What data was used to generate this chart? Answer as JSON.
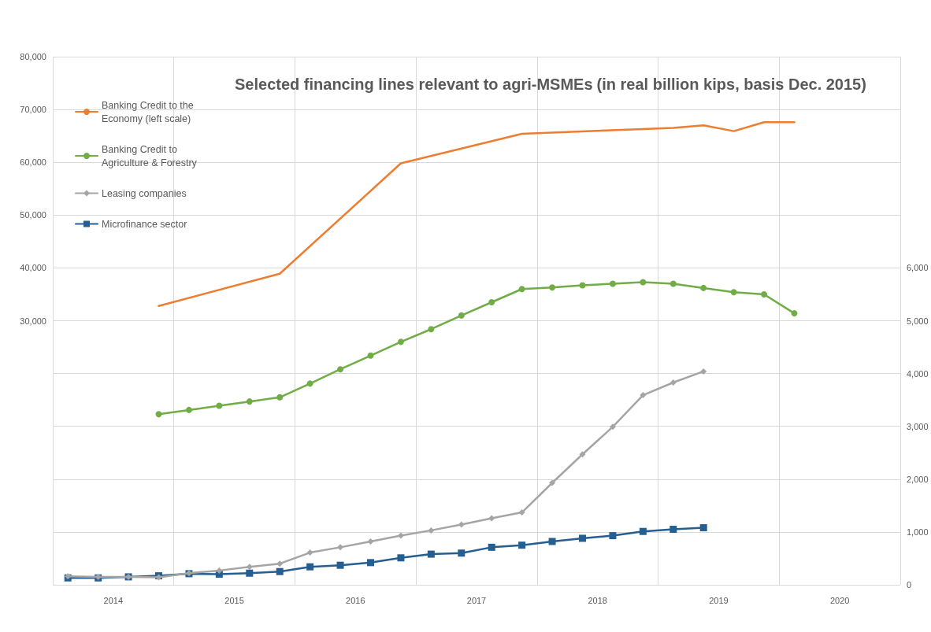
{
  "chart_data": {
    "type": "line",
    "title": "Selected financing lines relevant to agri-MSMEs",
    "subtitle": "(in real billion kips, basis Dec. 2015)",
    "xlim": [
      2014,
      2021
    ],
    "xticks": [
      {
        "value": 2014,
        "label": null
      },
      {
        "value": 2014.5,
        "label": "2014"
      },
      {
        "value": 2015,
        "label": null
      },
      {
        "value": 2015.5,
        "label": "2015"
      },
      {
        "value": 2016,
        "label": null
      },
      {
        "value": 2016.5,
        "label": "2016"
      },
      {
        "value": 2017,
        "label": null
      },
      {
        "value": 2017.5,
        "label": "2017"
      },
      {
        "value": 2018,
        "label": null
      },
      {
        "value": 2018.5,
        "label": "2018"
      },
      {
        "value": 2019,
        "label": null
      },
      {
        "value": 2019.5,
        "label": "2019"
      },
      {
        "value": 2020,
        "label": null
      },
      {
        "value": 2020.5,
        "label": "2020"
      },
      {
        "value": 2021,
        "label": null
      }
    ],
    "ylim": [
      -20000,
      80000
    ],
    "yticks": [
      {
        "value": 30000,
        "label": "30,000"
      },
      {
        "value": 40000,
        "label": "40,000"
      },
      {
        "value": 50000,
        "label": "50,000"
      },
      {
        "value": 60000,
        "label": "60,000"
      },
      {
        "value": 70000,
        "label": "70,000"
      },
      {
        "value": 80000,
        "label": "80,000"
      }
    ],
    "y2lim": [
      0,
      10000
    ],
    "y2ticks": [
      0,
      {
        "value": 1000,
        "label": "1,000"
      },
      {
        "value": 2000,
        "label": "2,000"
      },
      {
        "value": 3000,
        "label": "3,000"
      },
      {
        "value": 4000,
        "label": "4,000"
      },
      {
        "value": 5000,
        "label": "5,000"
      },
      {
        "value": 6000,
        "label": "6,000"
      }
    ],
    "grid": true,
    "legend": "top left",
    "line_style": "solid",
    "series": [
      {
        "name": "Banking Credit to the Economy (left scale)",
        "color": "#ed7d31",
        "marker": "none",
        "x": [
          2014.875,
          2015.875,
          2016.875,
          2017.875,
          2018.875,
          2019.125,
          2019.375,
          2019.625,
          2019.875,
          2020.125
        ],
        "values": [
          32800,
          38900,
          59800,
          65400,
          66300,
          66500,
          67000,
          65900,
          67600,
          67600
        ]
      },
      {
        "name": "Banking Credit to Agriculture & Forestry",
        "color": "#70ad47",
        "marker": "circle",
        "axis": "y2",
        "x": [
          2014.875,
          2015.125,
          2015.375,
          2015.625,
          2015.875,
          2016.125,
          2016.375,
          2016.625,
          2016.875,
          2017.125,
          2017.375,
          2017.625,
          2017.875,
          2018.125,
          2018.375,
          2018.625,
          2018.875,
          2019.125,
          2019.375,
          2019.625,
          2019.875,
          2020.125
        ],
        "values": [
          3230,
          3310,
          3390,
          3470,
          3550,
          3810,
          4080,
          4340,
          4600,
          4840,
          5100,
          5350,
          5600,
          5630,
          5670,
          5700,
          5730,
          5700,
          5620,
          5540,
          5500,
          5140
        ]
      },
      {
        "name": "Leasing companies",
        "color": "#a5a5a5",
        "marker": "diamond",
        "axis": "y2",
        "x": [
          2014.125,
          2014.375,
          2014.625,
          2014.875,
          2015.125,
          2015.375,
          2015.625,
          2015.875,
          2016.125,
          2016.375,
          2016.625,
          2016.875,
          2017.125,
          2017.375,
          2017.625,
          2017.875,
          2018.125,
          2018.375,
          2018.625,
          2018.875,
          2019.125,
          2019.375
        ],
        "values": [
          160,
          150,
          150,
          140,
          220,
          270,
          340,
          400,
          610,
          710,
          820,
          930,
          1030,
          1140,
          1260,
          1370,
          1930,
          2470,
          2990,
          3590,
          3830,
          4040
        ]
      },
      {
        "name": "Microfinance sector",
        "color": "#255e91",
        "marker": "square",
        "axis": "y2",
        "x": [
          2014.125,
          2014.375,
          2014.625,
          2014.875,
          2015.125,
          2015.375,
          2015.625,
          2015.875,
          2016.125,
          2016.375,
          2016.625,
          2016.875,
          2017.125,
          2017.375,
          2017.625,
          2017.875,
          2018.125,
          2018.375,
          2018.625,
          2018.875,
          2019.125,
          2019.375
        ],
        "values": [
          130,
          130,
          150,
          170,
          210,
          200,
          220,
          250,
          340,
          370,
          420,
          510,
          580,
          600,
          710,
          750,
          820,
          880,
          930,
          1010,
          1050,
          1080
        ]
      }
    ]
  }
}
